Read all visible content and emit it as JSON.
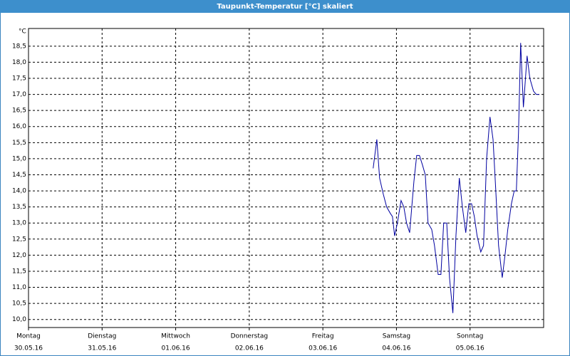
{
  "chart_data": {
    "type": "line",
    "title": "Taupunkt-Temperatur [°C] skaliert",
    "y_unit": "°C",
    "xlim": [
      0,
      168
    ],
    "xticks": [
      {
        "value": 0,
        "label": "Montag"
      },
      {
        "value": 24,
        "label": "Dienstag"
      },
      {
        "value": 48,
        "label": "Mittwoch"
      },
      {
        "value": 72,
        "label": "Donnerstag"
      },
      {
        "value": 96,
        "label": "Freitag"
      },
      {
        "value": 120,
        "label": "Samstag"
      },
      {
        "value": 144,
        "label": "Sonntag"
      }
    ],
    "xtick_dates": [
      "30.05.16",
      "31.05.16",
      "01.06.16",
      "02.06.16",
      "03.06.16",
      "04.06.16",
      "05.06.16"
    ],
    "ylim": [
      9.75,
      19.05
    ],
    "yticks": [
      {
        "value": 10,
        "label": "10,0"
      },
      {
        "value": 10.5,
        "label": "10,5"
      },
      {
        "value": 11,
        "label": "11,0"
      },
      {
        "value": 11.5,
        "label": "11,5"
      },
      {
        "value": 12,
        "label": "12,0"
      },
      {
        "value": 12.5,
        "label": "12,5"
      },
      {
        "value": 13,
        "label": "13,0"
      },
      {
        "value": 13.5,
        "label": "13,5"
      },
      {
        "value": 14,
        "label": "14,0"
      },
      {
        "value": 14.5,
        "label": "14,5"
      },
      {
        "value": 15,
        "label": "15,0"
      },
      {
        "value": 15.5,
        "label": "15,5"
      },
      {
        "value": 16,
        "label": "16,0"
      },
      {
        "value": 16.5,
        "label": "16,5"
      },
      {
        "value": 17,
        "label": "17,0"
      },
      {
        "value": 17.5,
        "label": "17,5"
      },
      {
        "value": 18,
        "label": "18,0"
      },
      {
        "value": 18.5,
        "label": "18,5"
      }
    ],
    "grid": true,
    "series": [
      {
        "color": "#0000a0",
        "x": [
          112.4,
          113.6,
          114.5,
          115.7,
          116.8,
          118.0,
          118.7,
          119.4,
          120.3,
          121.5,
          122.4,
          123.3,
          124.3,
          125.7,
          126.6,
          127.5,
          128.5,
          129.4,
          130.3,
          131.5,
          132.4,
          133.6,
          134.5,
          135.4,
          136.4,
          137.3,
          138.4,
          139.4,
          140.5,
          141.5,
          142.6,
          143.6,
          144.5,
          145.4,
          146.3,
          147.5,
          148.4,
          149.4,
          150.5,
          151.5,
          152.4,
          153.3,
          154.5,
          155.4,
          156.3,
          157.5,
          158.4,
          159.1,
          159.8,
          160.5,
          161.4,
          162.6,
          163.5,
          164.7,
          165.6,
          166.6
        ],
        "values": [
          14.7,
          15.6,
          14.4,
          13.9,
          13.5,
          13.3,
          13.2,
          12.6,
          13.0,
          13.7,
          13.5,
          13.0,
          12.7,
          14.3,
          15.1,
          15.1,
          14.8,
          14.5,
          13.0,
          12.8,
          12.3,
          11.4,
          11.4,
          13.0,
          13.0,
          11.3,
          10.2,
          12.6,
          14.4,
          13.5,
          12.7,
          13.6,
          13.6,
          13.2,
          12.6,
          12.1,
          12.3,
          15.0,
          16.3,
          15.6,
          14.0,
          12.3,
          11.3,
          12.0,
          12.8,
          13.6,
          14.0,
          14.0,
          15.8,
          18.6,
          16.6,
          18.2,
          17.5,
          17.1,
          17.0,
          17.0
        ]
      }
    ]
  }
}
